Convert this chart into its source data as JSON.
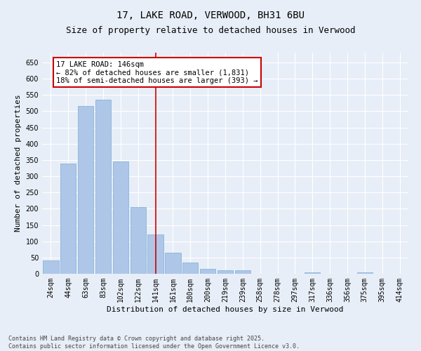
{
  "title": "17, LAKE ROAD, VERWOOD, BH31 6BU",
  "subtitle": "Size of property relative to detached houses in Verwood",
  "xlabel": "Distribution of detached houses by size in Verwood",
  "ylabel": "Number of detached properties",
  "categories": [
    "24sqm",
    "44sqm",
    "63sqm",
    "83sqm",
    "102sqm",
    "122sqm",
    "141sqm",
    "161sqm",
    "180sqm",
    "200sqm",
    "219sqm",
    "239sqm",
    "258sqm",
    "278sqm",
    "297sqm",
    "317sqm",
    "336sqm",
    "356sqm",
    "375sqm",
    "395sqm",
    "414sqm"
  ],
  "values": [
    40,
    340,
    515,
    535,
    345,
    205,
    120,
    65,
    35,
    15,
    10,
    10,
    0,
    0,
    0,
    5,
    0,
    0,
    5,
    0,
    0
  ],
  "bar_color": "#aec6e8",
  "bar_edge_color": "#7aafd4",
  "vline_x_index": 6,
  "vline_color": "#cc0000",
  "annotation_text": "17 LAKE ROAD: 146sqm\n← 82% of detached houses are smaller (1,831)\n18% of semi-detached houses are larger (393) →",
  "annotation_box_color": "#ffffff",
  "annotation_box_edge_color": "#cc0000",
  "ylim": [
    0,
    680
  ],
  "yticks": [
    0,
    50,
    100,
    150,
    200,
    250,
    300,
    350,
    400,
    450,
    500,
    550,
    600,
    650
  ],
  "background_color": "#e8eef7",
  "grid_color": "#ffffff",
  "footer_line1": "Contains HM Land Registry data © Crown copyright and database right 2025.",
  "footer_line2": "Contains public sector information licensed under the Open Government Licence v3.0.",
  "title_fontsize": 10,
  "subtitle_fontsize": 9,
  "axis_label_fontsize": 8,
  "tick_fontsize": 7,
  "annotation_fontsize": 7.5,
  "footer_fontsize": 6
}
